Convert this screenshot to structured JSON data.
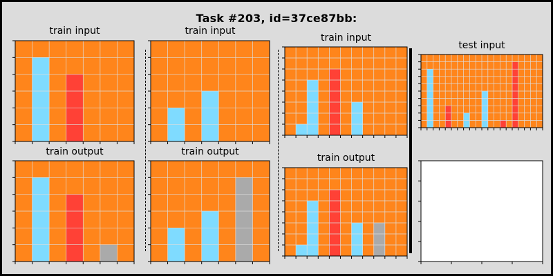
{
  "title": "Task #203, id=37ce87bb:",
  "colors": {
    "background": "#dcdcdc",
    "0": "#ff851b",
    "5": "#aaaaaa",
    "2": "#ff4136",
    "8": "#7fdbff",
    "empty": "#ffffff",
    "grid": "#dddddd"
  },
  "panels": [
    {
      "label": "train input",
      "grid": [
        [
          0,
          0,
          0,
          0,
          0,
          0,
          0
        ],
        [
          0,
          8,
          0,
          0,
          0,
          0,
          0
        ],
        [
          0,
          8,
          0,
          2,
          0,
          0,
          0
        ],
        [
          0,
          8,
          0,
          2,
          0,
          0,
          0
        ],
        [
          0,
          8,
          0,
          2,
          0,
          0,
          0
        ],
        [
          0,
          8,
          0,
          2,
          0,
          0,
          0
        ]
      ]
    },
    {
      "label": "train output",
      "grid": [
        [
          0,
          0,
          0,
          0,
          0,
          0,
          0
        ],
        [
          0,
          8,
          0,
          0,
          0,
          0,
          0
        ],
        [
          0,
          8,
          0,
          2,
          0,
          0,
          0
        ],
        [
          0,
          8,
          0,
          2,
          0,
          0,
          0
        ],
        [
          0,
          8,
          0,
          2,
          0,
          0,
          0
        ],
        [
          0,
          8,
          0,
          2,
          0,
          5,
          0
        ]
      ]
    },
    {
      "label": "train input",
      "grid": [
        [
          0,
          0,
          0,
          0,
          0,
          0,
          0
        ],
        [
          0,
          0,
          0,
          0,
          0,
          0,
          0
        ],
        [
          0,
          0,
          0,
          0,
          0,
          0,
          0
        ],
        [
          0,
          0,
          0,
          8,
          0,
          0,
          0
        ],
        [
          0,
          8,
          0,
          8,
          0,
          0,
          0
        ],
        [
          0,
          8,
          0,
          8,
          0,
          0,
          0
        ]
      ]
    },
    {
      "label": "train output",
      "grid": [
        [
          0,
          0,
          0,
          0,
          0,
          0,
          0
        ],
        [
          0,
          0,
          0,
          0,
          0,
          5,
          0
        ],
        [
          0,
          0,
          0,
          0,
          0,
          5,
          0
        ],
        [
          0,
          0,
          0,
          8,
          0,
          5,
          0
        ],
        [
          0,
          8,
          0,
          8,
          0,
          5,
          0
        ],
        [
          0,
          8,
          0,
          8,
          0,
          5,
          0
        ]
      ]
    },
    {
      "label": "train input",
      "grid": [
        [
          0,
          0,
          0,
          0,
          0,
          0,
          0,
          0,
          0,
          0,
          0
        ],
        [
          0,
          0,
          0,
          0,
          0,
          0,
          0,
          0,
          0,
          0,
          0
        ],
        [
          0,
          0,
          0,
          0,
          2,
          0,
          0,
          0,
          0,
          0,
          0
        ],
        [
          0,
          0,
          8,
          0,
          2,
          0,
          0,
          0,
          0,
          0,
          0
        ],
        [
          0,
          0,
          8,
          0,
          2,
          0,
          0,
          0,
          0,
          0,
          0
        ],
        [
          0,
          0,
          8,
          0,
          2,
          0,
          8,
          0,
          0,
          0,
          0
        ],
        [
          0,
          0,
          8,
          0,
          2,
          0,
          8,
          0,
          0,
          0,
          0
        ],
        [
          0,
          8,
          8,
          0,
          2,
          0,
          8,
          0,
          0,
          0,
          0
        ]
      ]
    },
    {
      "label": "train output",
      "grid": [
        [
          0,
          0,
          0,
          0,
          0,
          0,
          0,
          0,
          0,
          0,
          0
        ],
        [
          0,
          0,
          0,
          0,
          0,
          0,
          0,
          0,
          0,
          0,
          0
        ],
        [
          0,
          0,
          0,
          0,
          2,
          0,
          0,
          0,
          0,
          0,
          0
        ],
        [
          0,
          0,
          8,
          0,
          2,
          0,
          0,
          0,
          0,
          0,
          0
        ],
        [
          0,
          0,
          8,
          0,
          2,
          0,
          0,
          0,
          0,
          0,
          0
        ],
        [
          0,
          0,
          8,
          0,
          2,
          0,
          8,
          0,
          5,
          0,
          0
        ],
        [
          0,
          0,
          8,
          0,
          2,
          0,
          8,
          0,
          5,
          0,
          0
        ],
        [
          0,
          8,
          8,
          0,
          2,
          0,
          8,
          0,
          5,
          0,
          0
        ]
      ]
    },
    {
      "label": "test input",
      "grid": [
        [
          0,
          0,
          0,
          0,
          0,
          0,
          0,
          0,
          0,
          0,
          0,
          0,
          0,
          0,
          0,
          0,
          0,
          0,
          0,
          0
        ],
        [
          0,
          0,
          0,
          0,
          0,
          0,
          0,
          0,
          0,
          0,
          0,
          0,
          0,
          0,
          0,
          2,
          0,
          0,
          0,
          0
        ],
        [
          0,
          8,
          0,
          0,
          0,
          0,
          0,
          0,
          0,
          0,
          0,
          0,
          0,
          0,
          0,
          2,
          0,
          0,
          0,
          0
        ],
        [
          0,
          8,
          0,
          0,
          0,
          0,
          0,
          0,
          0,
          0,
          0,
          0,
          0,
          0,
          0,
          2,
          0,
          0,
          0,
          0
        ],
        [
          0,
          8,
          0,
          0,
          0,
          0,
          0,
          0,
          0,
          0,
          0,
          0,
          0,
          0,
          0,
          2,
          0,
          0,
          0,
          0
        ],
        [
          0,
          8,
          0,
          0,
          0,
          0,
          0,
          0,
          0,
          0,
          8,
          0,
          0,
          0,
          0,
          2,
          0,
          0,
          0,
          0
        ],
        [
          0,
          8,
          0,
          0,
          0,
          0,
          0,
          0,
          0,
          0,
          8,
          0,
          0,
          0,
          0,
          2,
          0,
          0,
          0,
          0
        ],
        [
          0,
          8,
          0,
          0,
          2,
          0,
          0,
          0,
          0,
          0,
          8,
          0,
          0,
          0,
          0,
          2,
          0,
          0,
          0,
          0
        ],
        [
          0,
          8,
          0,
          0,
          2,
          0,
          0,
          8,
          0,
          0,
          8,
          0,
          0,
          0,
          0,
          2,
          0,
          0,
          0,
          0
        ],
        [
          0,
          8,
          0,
          0,
          2,
          0,
          0,
          8,
          0,
          0,
          8,
          0,
          0,
          2,
          0,
          2,
          0,
          0,
          0,
          0
        ]
      ]
    },
    {
      "label": "",
      "grid": []
    }
  ]
}
